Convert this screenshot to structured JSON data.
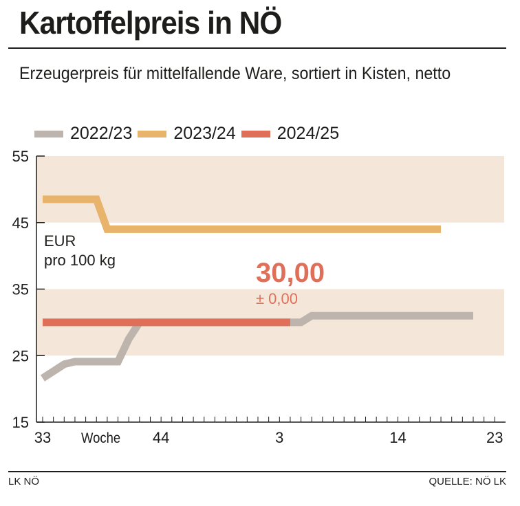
{
  "title": "Kartoffelpreis in NÖ",
  "subtitle": "Erzeugerpreis für mittelfallende Ware, sortiert in Kisten, netto",
  "footer": {
    "left": "LK NÖ",
    "right": "QUELLE: NÖ LK"
  },
  "chart_data": {
    "type": "line",
    "title": "Kartoffelpreis in NÖ",
    "xlabel": "Woche",
    "ylabel": "EUR pro 100 kg",
    "unit_label_line1": "EUR",
    "unit_label_line2": "pro 100 kg",
    "ylim": [
      15,
      55
    ],
    "yticks": [
      "15",
      "25",
      "35",
      "45",
      "55"
    ],
    "xticks": [
      "33",
      "44",
      "3",
      "14",
      "23"
    ],
    "x_range_weeks": [
      "33",
      "23"
    ],
    "shaded_bands": [
      [
        25,
        35
      ],
      [
        45,
        55
      ]
    ],
    "legend_placement": "top-left",
    "series": [
      {
        "name": "2022/23",
        "color": "#bcb4ad",
        "points": [
          [
            33,
            21.6
          ],
          [
            35,
            23.7
          ],
          [
            36,
            24.1
          ],
          [
            40,
            24.1
          ],
          [
            41,
            27.5
          ],
          [
            42,
            30
          ],
          [
            5,
            30
          ],
          [
            6,
            31
          ],
          [
            21,
            31
          ]
        ]
      },
      {
        "name": "2023/24",
        "color": "#e8b46c",
        "points": [
          [
            33,
            48.5
          ],
          [
            38,
            48.5
          ],
          [
            39,
            44
          ],
          [
            18,
            44
          ]
        ]
      },
      {
        "name": "2024/25",
        "color": "#e06f59",
        "points": [
          [
            33,
            30
          ],
          [
            4,
            30
          ]
        ]
      }
    ],
    "annotation": {
      "value": "30,00",
      "change": "± 0,00",
      "color": "#e06f59"
    }
  }
}
